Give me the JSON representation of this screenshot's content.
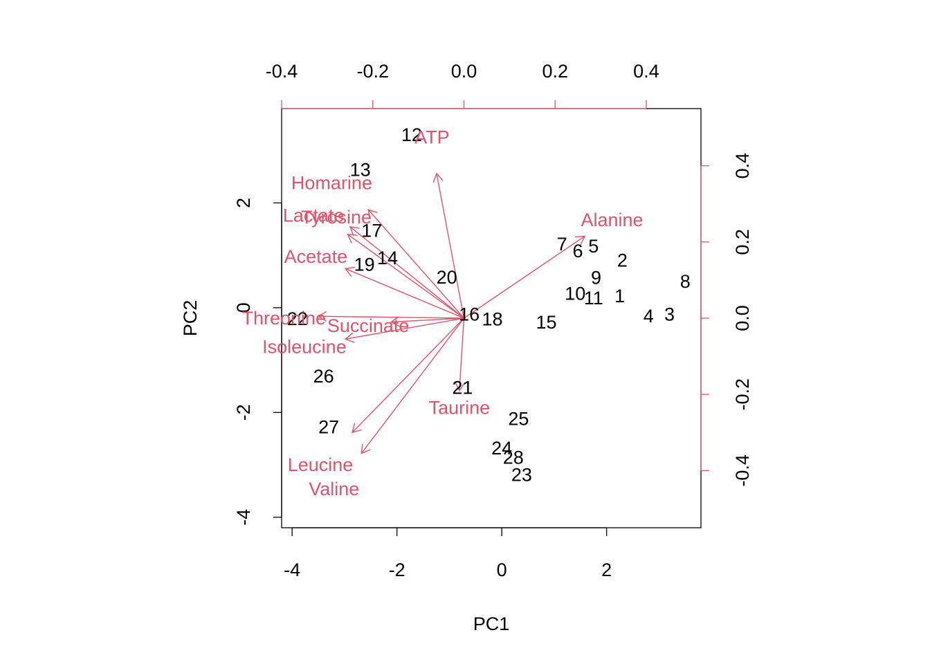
{
  "chart_data": {
    "type": "scatter",
    "subtype": "biplot",
    "title": "",
    "xlabel": "PC1",
    "ylabel": "PC2",
    "xlim": [
      -4.2,
      3.8
    ],
    "ylim": [
      -4.2,
      3.8
    ],
    "xticks": [
      -4,
      -2,
      0,
      2
    ],
    "yticks": [
      -4,
      -2,
      0,
      2
    ],
    "loading_xlim": [
      -0.4,
      0.52
    ],
    "loading_ylim": [
      -0.55,
      0.55
    ],
    "loading_xticks": [
      -0.4,
      -0.2,
      0.0,
      0.2,
      0.4
    ],
    "loading_yticks": [
      -0.4,
      -0.2,
      0.0,
      0.2,
      0.4
    ],
    "loading_xtick_labels": [
      "-0.4",
      "-0.2",
      "0.0",
      "0.2",
      "0.4"
    ],
    "loading_ytick_labels": [
      "-0.4",
      "-0.2",
      "0.0",
      "0.2",
      "0.4"
    ],
    "grid": false,
    "colors": {
      "scores": "#000000",
      "loadings": "#DF536B"
    },
    "scores": [
      {
        "label": "1",
        "x": 2.25,
        "y": 0.22
      },
      {
        "label": "2",
        "x": 2.3,
        "y": 0.9
      },
      {
        "label": "3",
        "x": 3.2,
        "y": -0.13
      },
      {
        "label": "4",
        "x": 2.8,
        "y": -0.16
      },
      {
        "label": "5",
        "x": 1.75,
        "y": 1.17
      },
      {
        "label": "6",
        "x": 1.45,
        "y": 1.08
      },
      {
        "label": "7",
        "x": 1.15,
        "y": 1.21
      },
      {
        "label": "8",
        "x": 3.5,
        "y": 0.5
      },
      {
        "label": "9",
        "x": 1.8,
        "y": 0.57
      },
      {
        "label": "10",
        "x": 1.4,
        "y": 0.27
      },
      {
        "label": "11",
        "x": 1.75,
        "y": 0.18
      },
      {
        "label": "12",
        "x": -1.72,
        "y": 3.3
      },
      {
        "label": "13",
        "x": -2.7,
        "y": 2.63
      },
      {
        "label": "14",
        "x": -2.18,
        "y": 0.95
      },
      {
        "label": "15",
        "x": 0.85,
        "y": -0.28
      },
      {
        "label": "16",
        "x": -0.62,
        "y": -0.13
      },
      {
        "label": "17",
        "x": -2.48,
        "y": 1.47
      },
      {
        "label": "18",
        "x": -0.18,
        "y": -0.22
      },
      {
        "label": "19",
        "x": -2.62,
        "y": 0.82
      },
      {
        "label": "20",
        "x": -1.05,
        "y": 0.58
      },
      {
        "label": "21",
        "x": -0.75,
        "y": -1.53
      },
      {
        "label": "22",
        "x": -3.9,
        "y": -0.21
      },
      {
        "label": "23",
        "x": 0.38,
        "y": -3.19
      },
      {
        "label": "24",
        "x": 0.0,
        "y": -2.68
      },
      {
        "label": "25",
        "x": 0.32,
        "y": -2.12
      },
      {
        "label": "26",
        "x": -3.4,
        "y": -1.31
      },
      {
        "label": "27",
        "x": -3.3,
        "y": -2.28
      },
      {
        "label": "28",
        "x": 0.22,
        "y": -2.86
      }
    ],
    "loadings": [
      {
        "name": "ATP",
        "x": -0.06,
        "y": 0.38,
        "label_x": -0.07,
        "label_y": 0.475
      },
      {
        "name": "Homarine",
        "x": -0.21,
        "y": 0.285,
        "label_x": -0.29,
        "label_y": 0.355
      },
      {
        "name": "Lactate",
        "x": -0.25,
        "y": 0.24,
        "label_x": -0.33,
        "label_y": 0.27
      },
      {
        "name": "Tyrosine",
        "x": -0.255,
        "y": 0.22,
        "label_x": -0.28,
        "label_y": 0.265
      },
      {
        "name": "Acetate",
        "x": -0.26,
        "y": 0.13,
        "label_x": -0.325,
        "label_y": 0.162
      },
      {
        "name": "Alanine",
        "x": 0.265,
        "y": 0.215,
        "label_x": 0.325,
        "label_y": 0.258
      },
      {
        "name": "Threonine",
        "x": -0.32,
        "y": 0.005,
        "label_x": -0.395,
        "label_y": 0.0
      },
      {
        "name": "Succinate",
        "x": -0.16,
        "y": -0.01,
        "label_x": -0.21,
        "label_y": -0.02
      },
      {
        "name": "Isoleucine",
        "x": -0.26,
        "y": -0.055,
        "label_x": -0.35,
        "label_y": -0.075
      },
      {
        "name": "Taurine",
        "x": -0.01,
        "y": -0.19,
        "label_x": -0.01,
        "label_y": -0.235
      },
      {
        "name": "Leucine",
        "x": -0.245,
        "y": -0.3,
        "label_x": -0.315,
        "label_y": -0.385
      },
      {
        "name": "Valine",
        "x": -0.225,
        "y": -0.355,
        "label_x": -0.285,
        "label_y": -0.448
      }
    ]
  }
}
